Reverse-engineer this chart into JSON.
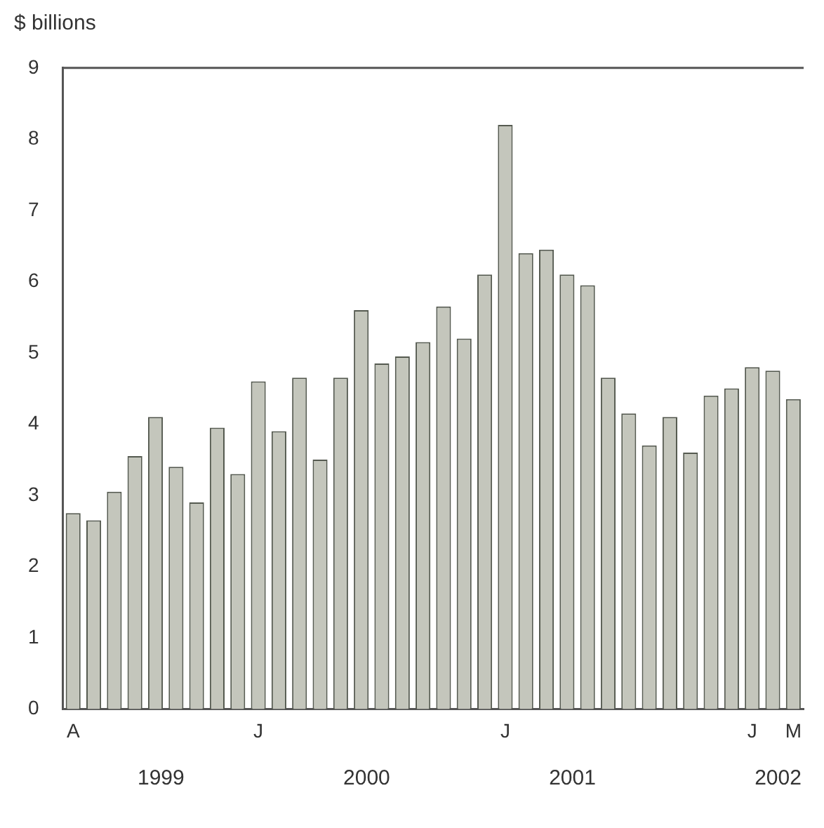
{
  "chart_data": {
    "type": "bar",
    "ylabel": "$ billions",
    "categories": [
      "A",
      null,
      null,
      null,
      null,
      null,
      null,
      null,
      null,
      "J",
      null,
      null,
      null,
      null,
      null,
      null,
      null,
      null,
      null,
      null,
      null,
      "J",
      null,
      null,
      null,
      null,
      null,
      null,
      null,
      null,
      null,
      null,
      null,
      "J",
      null,
      "M"
    ],
    "values": [
      2.75,
      2.65,
      3.05,
      3.55,
      4.1,
      3.4,
      2.9,
      3.95,
      3.3,
      4.6,
      3.9,
      4.65,
      3.5,
      4.65,
      5.6,
      4.85,
      4.95,
      5.15,
      5.65,
      5.2,
      6.1,
      8.2,
      6.4,
      6.45,
      6.1,
      5.95,
      4.65,
      4.15,
      3.7,
      4.1,
      3.6,
      4.4,
      4.5,
      4.8,
      4.75,
      4.35
    ],
    "color": "#c4c6bc",
    "ylim": [
      0,
      9
    ],
    "yticks": [
      0,
      1,
      2,
      3,
      4,
      5,
      6,
      7,
      8,
      9
    ],
    "grid": false,
    "legend": false,
    "annotations": [
      "1999",
      "2000",
      "2001",
      "2002"
    ]
  }
}
